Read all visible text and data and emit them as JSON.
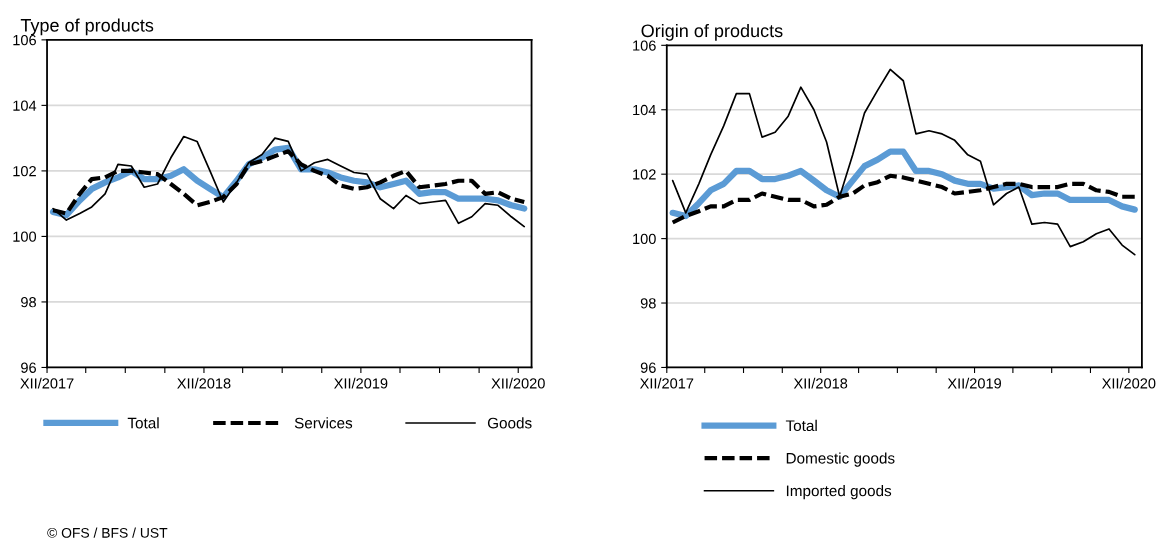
{
  "chart_data": [
    {
      "type": "line",
      "title": "Type of products",
      "x": [
        "2017-12-15",
        "2018-01-15",
        "2018-02-15",
        "2018-03-15",
        "2018-04-15",
        "2018-05-15",
        "2018-06-15",
        "2018-07-15",
        "2018-08-15",
        "2018-09-15",
        "2018-10-15",
        "2018-11-15",
        "2018-12-15",
        "2019-01-15",
        "2019-02-15",
        "2019-03-15",
        "2019-04-15",
        "2019-05-15",
        "2019-06-15",
        "2019-07-15",
        "2019-08-15",
        "2019-09-15",
        "2019-10-15",
        "2019-11-15",
        "2019-12-15",
        "2020-01-15",
        "2020-02-15",
        "2020-03-15",
        "2020-04-15",
        "2020-05-15",
        "2020-06-15",
        "2020-07-15",
        "2020-08-15",
        "2020-09-15",
        "2020-10-15",
        "2020-11-15",
        "2020-12-15"
      ],
      "series": [
        {
          "name": "Total",
          "color": "#5b9bd5",
          "line_style": "solid",
          "values": [
            100.75,
            100.65,
            101.1,
            101.45,
            101.65,
            101.8,
            102.0,
            101.75,
            101.75,
            101.85,
            102.05,
            101.7,
            101.45,
            101.2,
            101.7,
            102.2,
            102.4,
            102.65,
            102.7,
            102.05,
            102.05,
            101.95,
            101.8,
            101.7,
            101.65,
            101.5,
            101.6,
            101.7,
            101.3,
            101.35,
            101.35,
            101.15,
            101.15,
            101.15,
            101.1,
            100.95,
            100.85
          ]
        },
        {
          "name": "Services",
          "color": "#000000",
          "line_style": "dashed",
          "values": [
            100.8,
            100.7,
            101.3,
            101.75,
            101.8,
            102.0,
            102.0,
            101.95,
            101.9,
            101.6,
            101.3,
            100.95,
            101.05,
            101.2,
            101.6,
            102.2,
            102.3,
            102.45,
            102.6,
            102.2,
            102.0,
            101.85,
            101.55,
            101.45,
            101.5,
            101.65,
            101.85,
            102.0,
            101.5,
            101.55,
            101.6,
            101.7,
            101.7,
            101.3,
            101.35,
            101.15,
            101.05
          ]
        },
        {
          "name": "Goods",
          "color": "#000000",
          "line_style": "solid",
          "values": [
            100.85,
            100.5,
            100.7,
            100.9,
            101.3,
            102.2,
            102.15,
            101.5,
            101.6,
            102.4,
            103.05,
            102.9,
            102.0,
            101.05,
            101.65,
            102.25,
            102.5,
            103.0,
            102.9,
            102.0,
            102.25,
            102.35,
            102.15,
            101.95,
            101.9,
            101.15,
            100.85,
            101.25,
            101.0,
            101.05,
            101.1,
            100.4,
            100.6,
            101.0,
            100.95,
            100.6,
            100.3
          ]
        }
      ],
      "xlim": [
        "2017-12-01",
        "2021-01-01"
      ],
      "xticks": [
        {
          "value": "2017-12-01",
          "label": "XII/2017"
        },
        {
          "value": "2018-03-01",
          "label": null
        },
        {
          "value": "2018-06-01",
          "label": null
        },
        {
          "value": "2018-09-01",
          "label": null
        },
        {
          "value": "2018-12-01",
          "label": "XII/2018"
        },
        {
          "value": "2019-03-01",
          "label": null
        },
        {
          "value": "2019-06-01",
          "label": null
        },
        {
          "value": "2019-09-01",
          "label": null
        },
        {
          "value": "2019-12-01",
          "label": "XII/2019"
        },
        {
          "value": "2020-03-01",
          "label": null
        },
        {
          "value": "2020-06-01",
          "label": null
        },
        {
          "value": "2020-09-01",
          "label": null
        },
        {
          "value": "2020-12-01",
          "label": "XII/2020"
        }
      ],
      "ylim": [
        96,
        106
      ],
      "yticks": [
        96,
        98,
        100,
        102,
        104,
        106
      ],
      "grid": "y",
      "legend": "bottom",
      "annotations": [
        "© OFS / BFS / UST"
      ]
    },
    {
      "type": "line",
      "title": "Origin of products",
      "x": [
        "2017-12-15",
        "2018-01-15",
        "2018-02-15",
        "2018-03-15",
        "2018-04-15",
        "2018-05-15",
        "2018-06-15",
        "2018-07-15",
        "2018-08-15",
        "2018-09-15",
        "2018-10-15",
        "2018-11-15",
        "2018-12-15",
        "2019-01-15",
        "2019-02-15",
        "2019-03-15",
        "2019-04-15",
        "2019-05-15",
        "2019-06-15",
        "2019-07-15",
        "2019-08-15",
        "2019-09-15",
        "2019-10-15",
        "2019-11-15",
        "2019-12-15",
        "2020-01-15",
        "2020-02-15",
        "2020-03-15",
        "2020-04-15",
        "2020-05-15",
        "2020-06-15",
        "2020-07-15",
        "2020-08-15",
        "2020-09-15",
        "2020-10-15",
        "2020-11-15",
        "2020-12-15"
      ],
      "series": [
        {
          "name": "Total",
          "color": "#5b9bd5",
          "line_style": "solid",
          "values": [
            100.8,
            100.7,
            101.1,
            101.5,
            101.7,
            102.1,
            102.1,
            101.85,
            101.85,
            101.95,
            102.1,
            101.8,
            101.5,
            101.3,
            101.8,
            102.25,
            102.45,
            102.7,
            102.7,
            102.1,
            102.1,
            102.0,
            101.8,
            101.7,
            101.7,
            101.55,
            101.6,
            101.65,
            101.35,
            101.4,
            101.4,
            101.2,
            101.2,
            101.2,
            101.2,
            101.0,
            100.9
          ]
        },
        {
          "name": "Domestic goods",
          "color": "#000000",
          "line_style": "dashed",
          "values": [
            100.5,
            100.7,
            100.85,
            101.0,
            101.0,
            101.2,
            101.2,
            101.4,
            101.3,
            101.2,
            101.2,
            101.0,
            101.05,
            101.3,
            101.4,
            101.65,
            101.75,
            101.95,
            101.9,
            101.8,
            101.7,
            101.6,
            101.4,
            101.45,
            101.5,
            101.6,
            101.7,
            101.7,
            101.6,
            101.6,
            101.6,
            101.7,
            101.7,
            101.5,
            101.45,
            101.3,
            101.3
          ]
        },
        {
          "name": "Imported goods",
          "color": "#000000",
          "line_style": "solid",
          "values": [
            101.8,
            100.8,
            101.7,
            102.6,
            103.5,
            104.5,
            104.5,
            103.15,
            103.3,
            103.8,
            104.7,
            104.0,
            103.0,
            101.3,
            102.6,
            103.9,
            104.6,
            105.25,
            104.9,
            103.25,
            103.35,
            103.25,
            103.05,
            102.6,
            102.4,
            101.05,
            101.4,
            101.6,
            100.45,
            100.5,
            100.45,
            99.75,
            99.9,
            100.15,
            100.3,
            99.8,
            99.5
          ]
        }
      ],
      "xlim": [
        "2017-12-01",
        "2021-01-01"
      ],
      "xticks": [
        {
          "value": "2017-12-01",
          "label": "XII/2017"
        },
        {
          "value": "2018-03-01",
          "label": null
        },
        {
          "value": "2018-06-01",
          "label": null
        },
        {
          "value": "2018-09-01",
          "label": null
        },
        {
          "value": "2018-12-01",
          "label": "XII/2018"
        },
        {
          "value": "2019-03-01",
          "label": null
        },
        {
          "value": "2019-06-01",
          "label": null
        },
        {
          "value": "2019-09-01",
          "label": null
        },
        {
          "value": "2019-12-01",
          "label": "XII/2019"
        },
        {
          "value": "2020-03-01",
          "label": null
        },
        {
          "value": "2020-06-01",
          "label": null
        },
        {
          "value": "2020-09-01",
          "label": null
        },
        {
          "value": "2020-12-01",
          "label": "XII/2020"
        }
      ],
      "ylim": [
        96,
        106
      ],
      "yticks": [
        96,
        98,
        100,
        102,
        104,
        106
      ],
      "grid": "y",
      "legend": "bottom"
    }
  ]
}
